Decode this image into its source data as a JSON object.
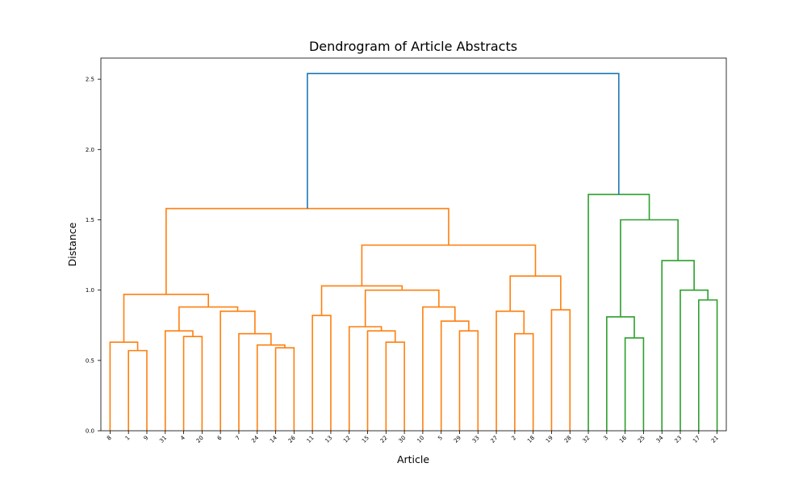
{
  "chart_data": {
    "type": "dendrogram",
    "title": "Dendrogram of Article Abstracts",
    "xlabel": "Article",
    "ylabel": "Distance",
    "ylim": [
      0,
      2.65
    ],
    "yticks": [
      "0.0",
      "0.5",
      "1.0",
      "1.5",
      "2.0",
      "2.5"
    ],
    "leaves": [
      "8",
      "1",
      "9",
      "31",
      "4",
      "20",
      "6",
      "7",
      "24",
      "14",
      "26",
      "11",
      "13",
      "12",
      "15",
      "22",
      "30",
      "10",
      "5",
      "29",
      "33",
      "27",
      "2",
      "18",
      "19",
      "28",
      "32",
      "3",
      "16",
      "25",
      "34",
      "23",
      "17",
      "21"
    ],
    "links": [
      {
        "x": [
          1,
          2
        ],
        "h": 0.57,
        "color": "#ff7f0e"
      },
      {
        "x": [
          0,
          1.5
        ],
        "h": 0.63,
        "color": "#ff7f0e"
      },
      {
        "x": [
          4,
          5
        ],
        "h": 0.67,
        "color": "#ff7f0e"
      },
      {
        "x": [
          3,
          4.5
        ],
        "h": 0.71,
        "color": "#ff7f0e"
      },
      {
        "x": [
          9,
          10
        ],
        "h": 0.59,
        "color": "#ff7f0e"
      },
      {
        "x": [
          8,
          9.5
        ],
        "h": 0.61,
        "color": "#ff7f0e"
      },
      {
        "x": [
          7,
          8.75
        ],
        "h": 0.69,
        "color": "#ff7f0e"
      },
      {
        "x": [
          6,
          7.875
        ],
        "h": 0.85,
        "color": "#ff7f0e"
      },
      {
        "x": [
          3.75,
          6.9375
        ],
        "h": 0.88,
        "color": "#ff7f0e"
      },
      {
        "x": [
          0.75,
          5.34375
        ],
        "h": 0.97,
        "color": "#ff7f0e"
      },
      {
        "x": [
          11,
          12
        ],
        "h": 0.82,
        "color": "#ff7f0e"
      },
      {
        "x": [
          15,
          16
        ],
        "h": 0.63,
        "color": "#ff7f0e"
      },
      {
        "x": [
          14,
          15.5
        ],
        "h": 0.71,
        "color": "#ff7f0e"
      },
      {
        "x": [
          13,
          14.75
        ],
        "h": 0.74,
        "color": "#ff7f0e"
      },
      {
        "x": [
          19,
          20
        ],
        "h": 0.71,
        "color": "#ff7f0e"
      },
      {
        "x": [
          18,
          19.5
        ],
        "h": 0.78,
        "color": "#ff7f0e"
      },
      {
        "x": [
          17,
          18.75
        ],
        "h": 0.88,
        "color": "#ff7f0e"
      },
      {
        "x": [
          13.875,
          17.875
        ],
        "h": 1.0,
        "color": "#ff7f0e"
      },
      {
        "x": [
          11.5,
          15.875
        ],
        "h": 1.03,
        "color": "#ff7f0e"
      },
      {
        "x": [
          22,
          23
        ],
        "h": 0.69,
        "color": "#ff7f0e"
      },
      {
        "x": [
          21,
          22.5
        ],
        "h": 0.85,
        "color": "#ff7f0e"
      },
      {
        "x": [
          24,
          25
        ],
        "h": 0.86,
        "color": "#ff7f0e"
      },
      {
        "x": [
          21.75,
          24.5
        ],
        "h": 1.1,
        "color": "#ff7f0e"
      },
      {
        "x": [
          13.6875,
          23.125
        ],
        "h": 1.32,
        "color": "#ff7f0e"
      },
      {
        "x": [
          3.046875,
          18.40625
        ],
        "h": 1.58,
        "color": "#ff7f0e"
      },
      {
        "x": [
          28,
          29
        ],
        "h": 0.66,
        "color": "#2ca02c"
      },
      {
        "x": [
          27,
          28.5
        ],
        "h": 0.81,
        "color": "#2ca02c"
      },
      {
        "x": [
          32,
          33
        ],
        "h": 0.93,
        "color": "#2ca02c"
      },
      {
        "x": [
          31,
          32.5
        ],
        "h": 1.0,
        "color": "#2ca02c"
      },
      {
        "x": [
          30,
          31.75
        ],
        "h": 1.21,
        "color": "#2ca02c"
      },
      {
        "x": [
          27.75,
          30.875
        ],
        "h": 1.5,
        "color": "#2ca02c"
      },
      {
        "x": [
          26,
          29.3125
        ],
        "h": 1.68,
        "color": "#2ca02c"
      },
      {
        "x": [
          10.7265625,
          27.65625
        ],
        "h": 2.54,
        "color": "#1f77b4"
      }
    ]
  }
}
